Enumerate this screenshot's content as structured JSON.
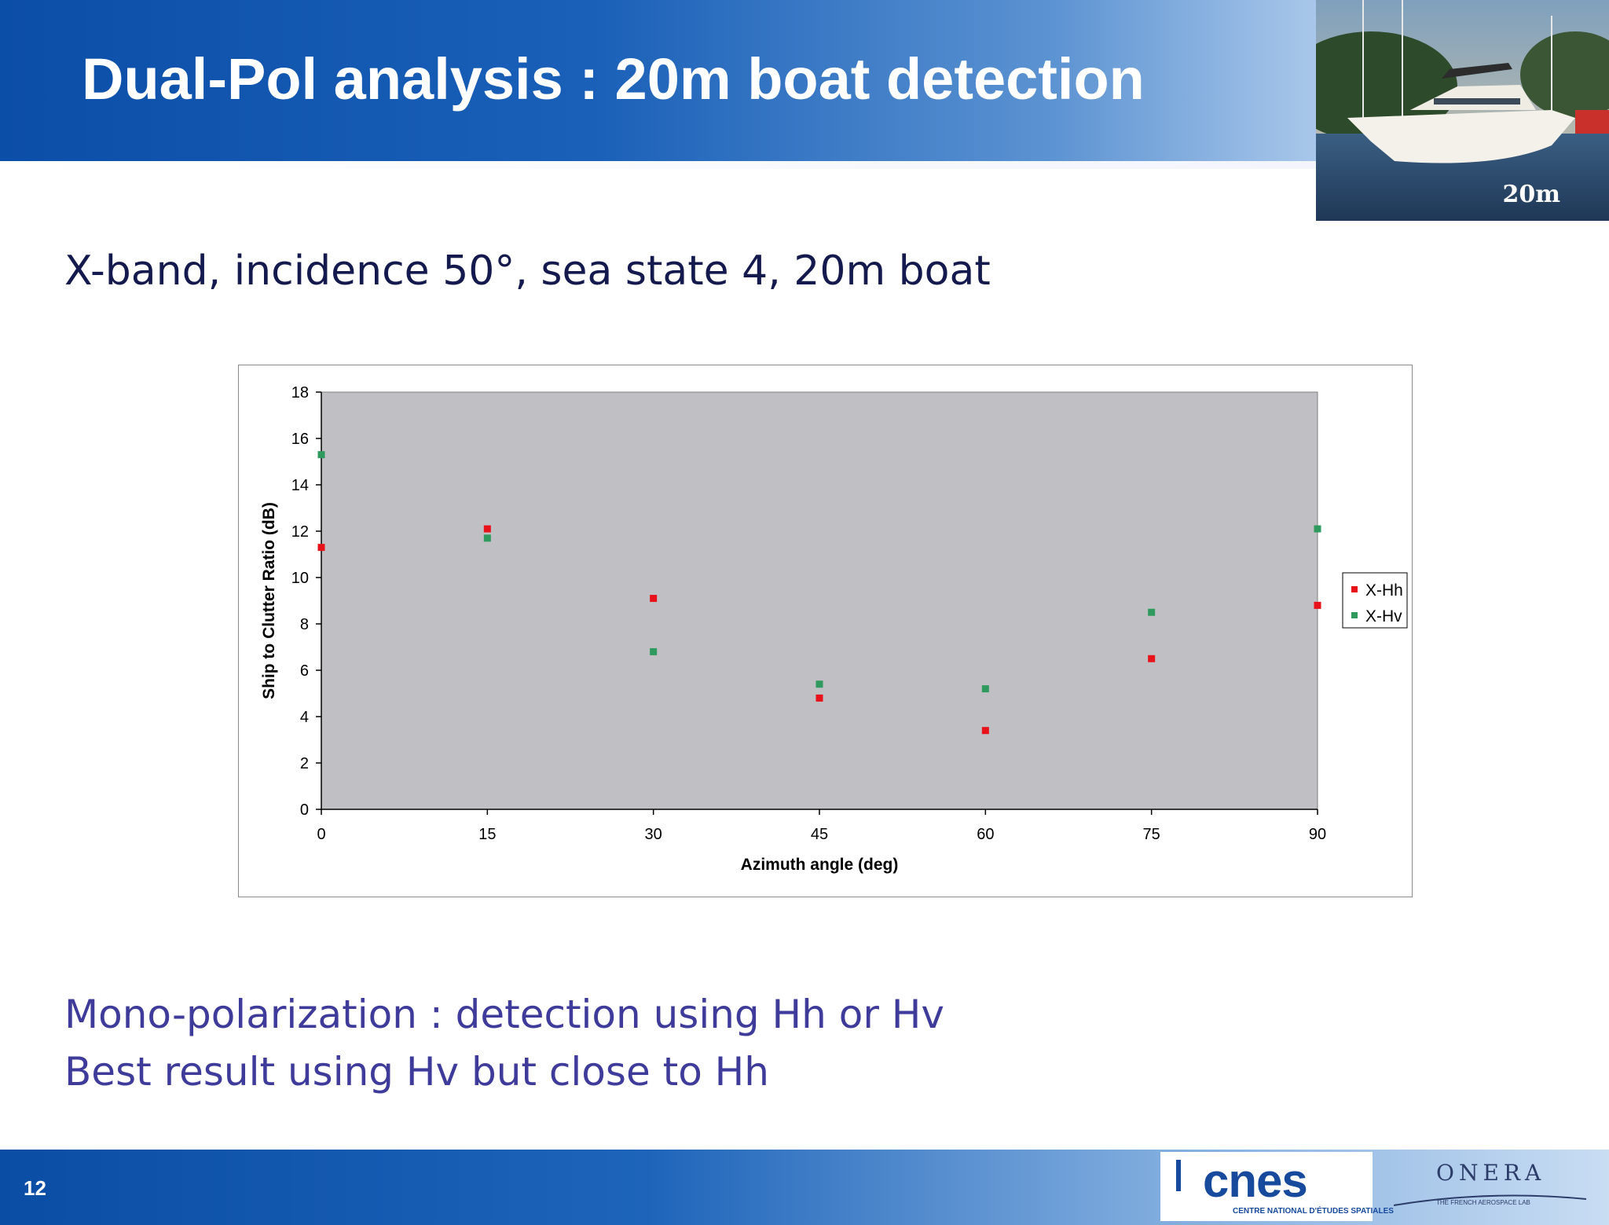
{
  "slide": {
    "title": "Dual-Pol analysis : 20m boat detection",
    "photo_label": "20m",
    "subtitle": "X-band, incidence 50°, sea state 4, 20m boat",
    "notes": [
      "Mono-polarization : detection using Hh or Hv",
      "Best result using Hv but close to Hh"
    ],
    "page_number": "12"
  },
  "logos": {
    "cnes": {
      "name": "cnes",
      "tagline": "CENTRE NATIONAL D'ÉTUDES SPATIALES"
    },
    "onera": {
      "name": "ONERA",
      "tagline": "THE FRENCH AEROSPACE LAB"
    }
  },
  "colors": {
    "header_blue": "#0b4ea8",
    "plot_background": "#c0bfc3",
    "x_hh": "#e8121b",
    "x_hv": "#2f9a5d",
    "notes_text": "#3f3b9a"
  },
  "chart_data": {
    "type": "scatter",
    "title": "",
    "xlabel": "Azimuth angle (deg)",
    "ylabel": "Ship to Clutter Ratio (dB)",
    "xlim": [
      0,
      90
    ],
    "ylim": [
      0,
      18
    ],
    "xticks": [
      0,
      15,
      30,
      45,
      60,
      75,
      90
    ],
    "yticks": [
      0,
      2,
      4,
      6,
      8,
      10,
      12,
      14,
      16,
      18
    ],
    "grid": false,
    "legend_position": "right",
    "x": [
      0,
      15,
      30,
      45,
      60,
      75,
      90
    ],
    "series": [
      {
        "name": "X-Hh",
        "color": "#e8121b",
        "values": [
          11.3,
          12.1,
          9.1,
          4.8,
          3.4,
          6.5,
          8.8
        ]
      },
      {
        "name": "X-Hv",
        "color": "#2f9a5d",
        "values": [
          15.3,
          11.7,
          6.8,
          5.4,
          5.2,
          8.5,
          12.1
        ]
      }
    ]
  }
}
